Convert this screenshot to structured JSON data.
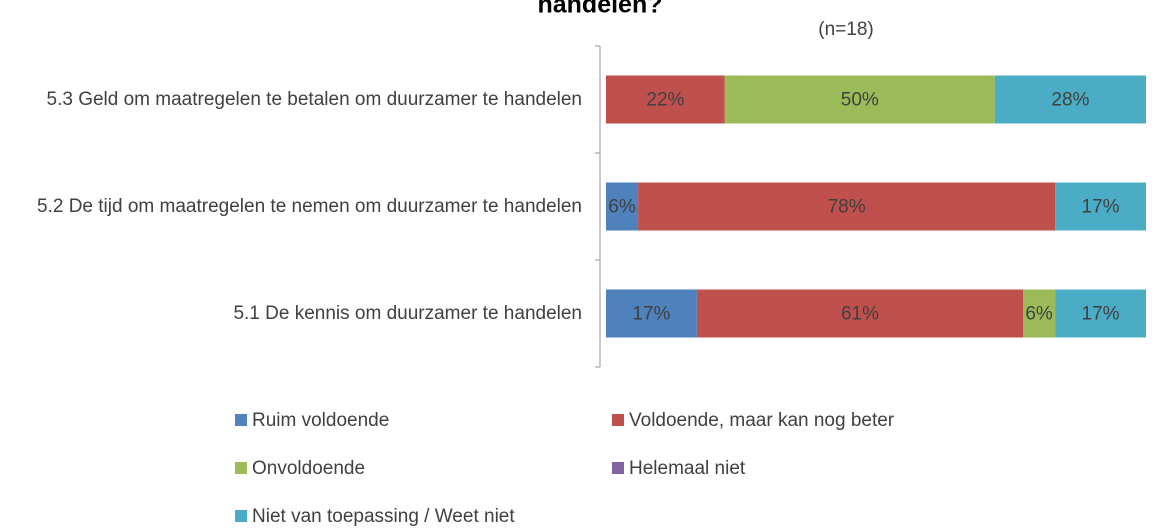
{
  "chart_data": {
    "type": "bar",
    "orientation": "horizontal",
    "stacked": "percent",
    "title": "handelen?",
    "subtitle": "(n=18)",
    "categories": [
      "5.3 Geld om maatregelen te betalen om duurzamer te handelen",
      "5.2 De tijd om maatregelen te nemen om duurzamer te handelen",
      "5.1 De kennis om duurzamer te handelen"
    ],
    "series": [
      {
        "name": "Ruim voldoende",
        "color": "#4f81bd",
        "values": [
          0,
          6,
          17
        ],
        "value_labels": [
          null,
          "6%",
          "17%"
        ]
      },
      {
        "name": "Voldoende, maar kan nog beter",
        "color": "#c0504d",
        "values": [
          22,
          78,
          61
        ],
        "value_labels": [
          "22%",
          "78%",
          "61%"
        ]
      },
      {
        "name": "Onvoldoende",
        "color": "#9bbb59",
        "values": [
          50,
          0,
          6
        ],
        "value_labels": [
          "50%",
          null,
          "6%"
        ]
      },
      {
        "name": "Helemaal niet",
        "color": "#8064a2",
        "values": [
          0,
          0,
          0
        ],
        "value_labels": [
          null,
          null,
          null
        ]
      },
      {
        "name": "Niet van toepassing / Weet niet",
        "color": "#4bacc6",
        "values": [
          28,
          17,
          17
        ],
        "value_labels": [
          "28%",
          "17%",
          "17%"
        ]
      }
    ],
    "legend": "bottom"
  }
}
